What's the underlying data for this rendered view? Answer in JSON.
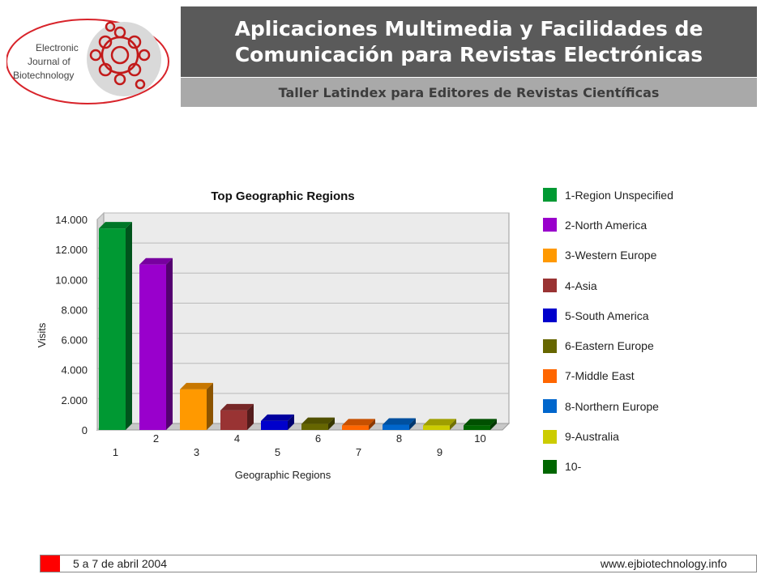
{
  "header": {
    "title_line1": "Aplicaciones Multimedia y Facilidades de",
    "title_line2": "Comunicación para Revistas Electrónicas",
    "subtitle": "Taller Latindex para Editores de Revistas Científicas"
  },
  "logo": {
    "line1": "Electronic",
    "line2": "Journal of",
    "line3": "Biotechnology",
    "accent": "#d8232a"
  },
  "footer": {
    "date": "5 a 7 de abril 2004",
    "url": "www.ejbiotechnology.info",
    "accent": "#ff0000"
  },
  "chart_data": {
    "type": "bar",
    "title": "Top Geographic Regions",
    "xlabel": "Geographic Regions",
    "ylabel": "Visits",
    "ylim": [
      0,
      14000
    ],
    "yticks": [
      "0",
      "2.000",
      "4.000",
      "6.000",
      "8.000",
      "10.000",
      "12.000",
      "14.000"
    ],
    "ytick_values": [
      0,
      2000,
      4000,
      6000,
      8000,
      10000,
      12000,
      14000
    ],
    "grid": true,
    "legend_position": "right",
    "categories": [
      "1",
      "2",
      "3",
      "4",
      "5",
      "6",
      "7",
      "8",
      "9",
      "10"
    ],
    "values": [
      13400,
      11000,
      2700,
      1300,
      600,
      400,
      300,
      350,
      300,
      300
    ],
    "colors": [
      "#009933",
      "#9900cc",
      "#ff9900",
      "#993333",
      "#0000cc",
      "#666600",
      "#ff6600",
      "#0066cc",
      "#cccc00",
      "#006600"
    ],
    "legend": [
      "1-Region Unspecified",
      "2-North America",
      "3-Western Europe",
      "4-Asia",
      "5-South America",
      "6-Eastern Europe",
      "7-Middle East",
      "8-Northern Europe",
      "9-Australia",
      "10-"
    ]
  }
}
